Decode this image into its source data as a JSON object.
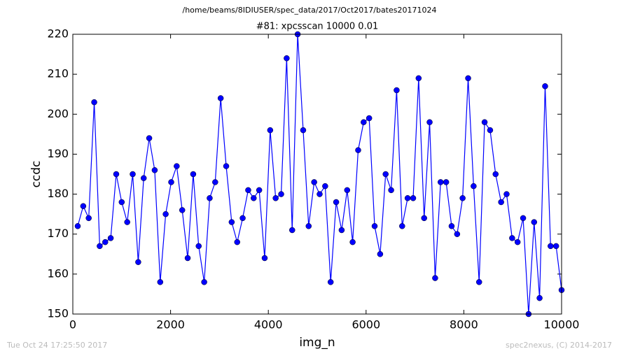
{
  "chart_data": {
    "type": "line",
    "suptitle": "/home/beams/8IDIUSER/spec_data/2017/Oct2017/bates20171024",
    "title": "#81: xpcsscan 10000 0.01",
    "x_label": "img_n",
    "y_label": "ccdc",
    "footer_left": "Tue Oct 24 17:25:50 2017",
    "footer_right": "spec2nexus, (C) 2014-2017",
    "x": [
      100,
      213,
      325,
      438,
      550,
      663,
      775,
      888,
      1000,
      1113,
      1225,
      1338,
      1450,
      1563,
      1675,
      1788,
      1900,
      2013,
      2125,
      2238,
      2350,
      2463,
      2575,
      2688,
      2800,
      2913,
      3025,
      3138,
      3250,
      3363,
      3475,
      3588,
      3700,
      3813,
      3925,
      4038,
      4150,
      4263,
      4375,
      4488,
      4600,
      4713,
      4825,
      4938,
      5050,
      5163,
      5275,
      5388,
      5500,
      5613,
      5725,
      5838,
      5950,
      6063,
      6175,
      6288,
      6400,
      6513,
      6625,
      6738,
      6850,
      6963,
      7075,
      7188,
      7300,
      7413,
      7525,
      7638,
      7750,
      7863,
      7975,
      8088,
      8200,
      8313,
      8425,
      8538,
      8650,
      8763,
      8875,
      8988,
      9100,
      9213,
      9325,
      9438,
      9550,
      9663,
      9775,
      9888,
      10000
    ],
    "series": [
      {
        "name": "ccdc",
        "color": "#0000ff",
        "values": [
          172,
          177,
          174,
          203,
          167,
          168,
          169,
          185,
          178,
          173,
          185,
          163,
          184,
          194,
          186,
          158,
          175,
          183,
          187,
          176,
          164,
          185,
          167,
          158,
          179,
          183,
          204,
          187,
          173,
          168,
          174,
          181,
          179,
          181,
          164,
          196,
          179,
          180,
          214,
          171,
          220,
          196,
          172,
          183,
          180,
          182,
          158,
          178,
          171,
          181,
          168,
          191,
          198,
          199,
          172,
          165,
          185,
          181,
          206,
          172,
          179,
          179,
          209,
          174,
          198,
          159,
          183,
          183,
          172,
          170,
          179,
          209,
          182,
          158,
          198,
          196,
          185,
          178,
          180,
          169,
          168,
          174,
          150,
          173,
          154,
          207,
          167,
          167,
          156
        ]
      }
    ],
    "xlim": [
      0,
      10000
    ],
    "xticks": [
      0,
      2000,
      4000,
      6000,
      8000,
      10000
    ],
    "ylim": [
      150,
      220
    ],
    "yticks": [
      150,
      160,
      170,
      180,
      190,
      200,
      210,
      220
    ]
  }
}
